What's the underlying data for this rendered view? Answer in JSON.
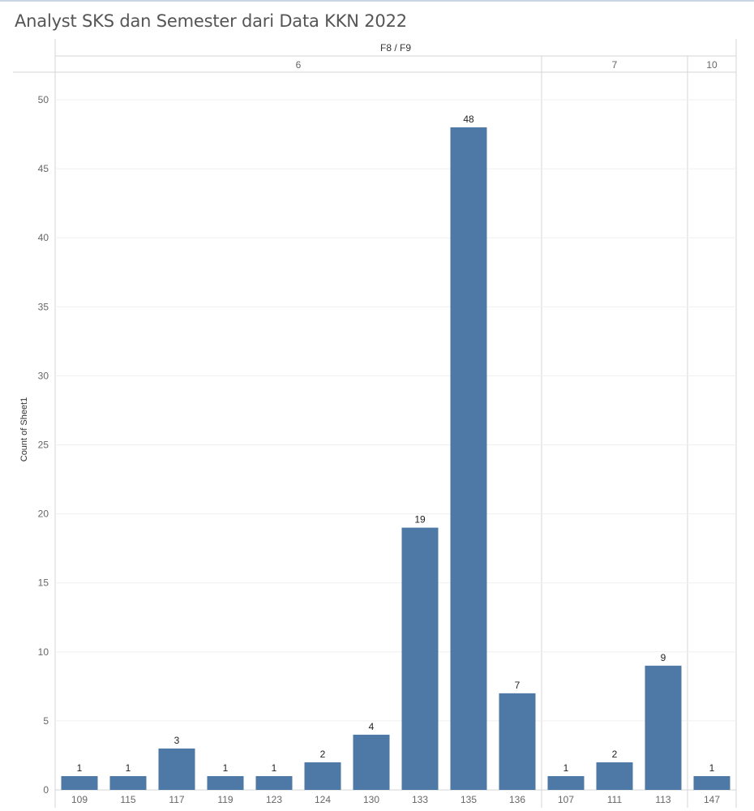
{
  "title": "Analyst SKS dan Semester dari Data KKN 2022",
  "chart_data": {
    "type": "bar",
    "title": "Analyst SKS dan Semester dari Data KKN 2022",
    "column_header": "F8 / F9",
    "ylabel": "Count of Sheet1",
    "xlabel": "",
    "ylim": [
      0,
      50
    ],
    "yticks": [
      0,
      5,
      10,
      15,
      20,
      25,
      30,
      35,
      40,
      45,
      50
    ],
    "grid": true,
    "bar_color": "#4e79a7",
    "groups": [
      {
        "label": "6",
        "categories": [
          "109",
          "115",
          "117",
          "119",
          "123",
          "124",
          "130",
          "133",
          "135",
          "136"
        ],
        "values": [
          1,
          1,
          3,
          1,
          1,
          2,
          4,
          19,
          48,
          7
        ]
      },
      {
        "label": "7",
        "categories": [
          "107",
          "111",
          "113"
        ],
        "values": [
          1,
          2,
          9
        ]
      },
      {
        "label": "10",
        "categories": [
          "147"
        ],
        "values": [
          1
        ]
      }
    ]
  }
}
